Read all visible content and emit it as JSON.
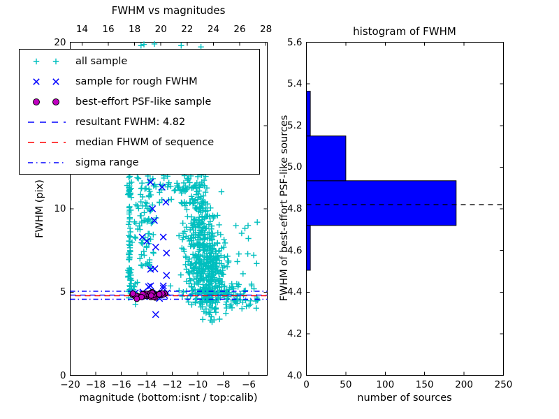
{
  "figure": {
    "background": "#ffffff"
  },
  "colors": {
    "cyan": "#00bfbf",
    "blue": "#0000ff",
    "magenta": "#bf00bf",
    "red": "#ff0000",
    "black": "#000000",
    "hist_fill": "#0000ff",
    "axis": "#000000"
  },
  "chart_data": [
    {
      "id": "fwhm_vs_magnitudes",
      "type": "scatter",
      "title": "FWHM vs magnitudes",
      "xlabel": "magnitude (bottom:isnt / top:calib)",
      "ylabel": "FWHM (pix)",
      "xlim": [
        -20,
        -4.55
      ],
      "xlim_top": [
        13.1,
        28.1
      ],
      "ylim": [
        0,
        20
      ],
      "grid": false,
      "xticks_bottom": {
        "values": [
          -20,
          -18,
          -16,
          -14,
          -12,
          -10,
          -8,
          -6
        ],
        "labels": [
          "−20",
          "−18",
          "−16",
          "−14",
          "−12",
          "−10",
          "−8",
          "−6"
        ]
      },
      "xticks_top": {
        "values": [
          14,
          16,
          18,
          20,
          22,
          24,
          26,
          28
        ],
        "labels": [
          "14",
          "16",
          "18",
          "20",
          "22",
          "24",
          "26",
          "28"
        ]
      },
      "yticks": {
        "values": [
          0,
          5,
          10,
          15,
          20
        ],
        "labels": [
          "0",
          "5",
          "10",
          "15",
          "20"
        ]
      },
      "hlines": [
        {
          "name": "resultant FWHM",
          "value": 4.82,
          "color": "blue",
          "style": "dashed",
          "dashoffset": 0
        },
        {
          "name": "median FHWM of sequence",
          "value": 4.78,
          "color": "red",
          "style": "dashed",
          "dashoffset": 7
        },
        {
          "name": "sigma range upper",
          "value": 5.05,
          "color": "blue",
          "style": "dashdot",
          "dashoffset": 0
        },
        {
          "name": "sigma range lower",
          "value": 4.57,
          "color": "blue",
          "style": "dashdot",
          "dashoffset": 0
        }
      ],
      "series": [
        {
          "name": "all sample",
          "marker": "plus",
          "color": "cyan",
          "seed": 42,
          "clusters": [
            {
              "n": 70,
              "x": [
                "n",
                -15.33,
                0.07
              ],
              "y": [
                "u",
                4.85,
                12.0
              ]
            },
            {
              "n": 85,
              "x": [
                "n",
                -14.05,
                0.5
              ],
              "y": [
                "u",
                6.4,
                12.0
              ]
            },
            {
              "n": 70,
              "x": [
                "u",
                -13.0,
                -9.3
              ],
              "y": [
                "u",
                10.3,
                12.0
              ]
            },
            {
              "n": 150,
              "x": [
                "n",
                -9.95,
                0.7
              ],
              "y": [
                "n",
                9.2,
                1.15
              ]
            },
            {
              "n": 320,
              "x": [
                "n",
                -9.35,
                0.75
              ],
              "y": [
                "n",
                6.4,
                1.15
              ]
            },
            {
              "n": 95,
              "x": [
                "n",
                -8.9,
                1.05
              ],
              "y": [
                "n",
                4.85,
                0.33
              ]
            },
            {
              "n": 48,
              "x": [
                "u",
                -8.1,
                -5.2
              ],
              "y": [
                "n",
                4.75,
                0.42
              ]
            },
            {
              "n": 12,
              "x": [
                "u",
                -7.6,
                -5.1
              ],
              "y": [
                "u",
                5.8,
                9.8
              ]
            },
            {
              "n": 9,
              "x": [
                "n",
                -9.3,
                0.7
              ],
              "y": [
                "u",
                3.3,
                4.25
              ]
            },
            {
              "n": 12,
              "x": [
                "n",
                -15.1,
                0.25
              ],
              "y": [
                "n",
                5.05,
                0.35
              ]
            }
          ],
          "points": [
            [
              -14.45,
              19.8
            ],
            [
              -14.22,
              19.87
            ],
            [
              -13.4,
              19.9
            ],
            [
              -11.3,
              19.8
            ],
            [
              -9.75,
              19.72
            ]
          ]
        },
        {
          "name": "sample for rough FWHM",
          "marker": "x",
          "color": "blue",
          "points": [
            [
              -13.7,
              11.6
            ],
            [
              -12.8,
              11.3
            ],
            [
              -12.5,
              10.4
            ],
            [
              -13.55,
              10.0
            ],
            [
              -13.4,
              9.3
            ],
            [
              -14.0,
              8.05
            ],
            [
              -14.35,
              8.3
            ],
            [
              -13.3,
              7.7
            ],
            [
              -12.7,
              8.3
            ],
            [
              -13.7,
              6.37
            ],
            [
              -12.45,
              7.34
            ],
            [
              -13.37,
              6.4
            ],
            [
              -12.45,
              6.0
            ],
            [
              -13.7,
              5.37
            ],
            [
              -12.7,
              5.37
            ],
            [
              -13.86,
              5.32
            ],
            [
              -12.7,
              5.24
            ],
            [
              -14.9,
              4.95
            ],
            [
              -14.3,
              5.0
            ],
            [
              -13.8,
              4.75
            ],
            [
              -13.2,
              4.95
            ],
            [
              -12.6,
              4.8
            ],
            [
              -12.4,
              4.95
            ],
            [
              -14.6,
              4.7
            ],
            [
              -13.0,
              4.62
            ],
            [
              -13.3,
              3.65
            ]
          ]
        },
        {
          "name": "best-effort PSF-like sample",
          "marker": "circle",
          "color": "magenta",
          "seed": 7,
          "clusters": [
            {
              "n": 38,
              "x": [
                "u",
                -15.15,
                -12.5
              ],
              "y": [
                "n",
                4.82,
                0.07
              ]
            }
          ]
        }
      ],
      "legend": {
        "items": [
          {
            "label": "all sample",
            "marker": "plus",
            "color": "cyan"
          },
          {
            "label": "sample for rough FWHM",
            "marker": "x",
            "color": "blue"
          },
          {
            "label": "best-effort PSF-like sample",
            "marker": "circle",
            "color": "magenta"
          },
          {
            "label": "resultant FWHM: 4.82",
            "marker": "dashed-line",
            "color": "blue"
          },
          {
            "label": "median FHWM of sequence",
            "marker": "dashed-line",
            "color": "red"
          },
          {
            "label": "sigma range",
            "marker": "dashdot-line",
            "color": "blue"
          }
        ]
      }
    },
    {
      "id": "histogram_of_fwhm",
      "type": "bar",
      "orientation": "horizontal",
      "title": "histogram of FWHM",
      "xlabel": "number of sources",
      "ylabel": "FWHM of best-effort PSF-like sources",
      "xlim": [
        0,
        250
      ],
      "ylim": [
        4.0,
        5.6
      ],
      "grid": false,
      "xticks": {
        "values": [
          0,
          50,
          100,
          150,
          200,
          250
        ],
        "labels": [
          "0",
          "50",
          "100",
          "150",
          "200",
          "250"
        ]
      },
      "yticks": {
        "values": [
          4.0,
          4.2,
          4.4,
          4.6,
          4.8,
          5.0,
          5.2,
          5.4,
          5.6
        ],
        "labels": [
          "4.0",
          "4.2",
          "4.4",
          "4.6",
          "4.8",
          "5.0",
          "5.2",
          "5.4",
          "5.6"
        ]
      },
      "bin_edges": [
        4.505,
        4.72,
        4.935,
        5.15,
        5.365
      ],
      "counts": [
        5,
        190,
        50,
        5
      ],
      "marker_line": {
        "name": "resultant FWHM",
        "value": 4.82,
        "color": "black",
        "style": "dashed"
      }
    }
  ]
}
